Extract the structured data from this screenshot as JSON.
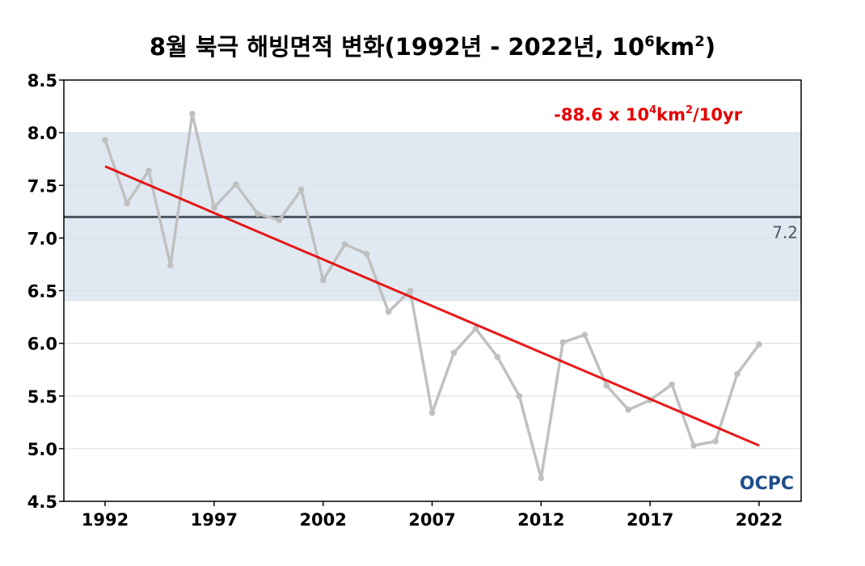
{
  "chart_data": {
    "type": "line",
    "title": "8월 북극 해빙면적 변화(1992년 - 2022년, 10",
    "title_sup1": "6",
    "title_mid": "km",
    "title_sup2": "2",
    "title_end": ")",
    "xlabel": "",
    "ylabel": "",
    "x": [
      1992,
      1993,
      1994,
      1995,
      1996,
      1997,
      1998,
      1999,
      2000,
      2001,
      2002,
      2003,
      2004,
      2005,
      2006,
      2007,
      2008,
      2009,
      2010,
      2011,
      2012,
      2013,
      2014,
      2015,
      2016,
      2017,
      2018,
      2019,
      2020,
      2021,
      2022
    ],
    "series": [
      {
        "values": [
          7.93,
          7.33,
          7.64,
          6.74,
          8.18,
          7.29,
          7.51,
          7.23,
          7.17,
          7.46,
          6.6,
          6.94,
          6.85,
          6.3,
          6.5,
          5.34,
          5.91,
          6.14,
          5.87,
          5.5,
          4.72,
          6.01,
          6.08,
          5.6,
          5.37,
          5.46,
          5.61,
          5.03,
          5.07,
          5.71,
          5.99
        ],
        "color": "#c0c0c0"
      }
    ],
    "trend": {
      "start": [
        1992,
        7.68
      ],
      "end": [
        2022,
        5.03
      ],
      "color": "#e60000"
    },
    "trend_label": {
      "prefix": "-88.6 x 10",
      "sup1": "4",
      "mid": "km",
      "sup2": "2",
      "suffix": "/10yr"
    },
    "mean_line": {
      "value": 7.2,
      "label": "7.2",
      "color": "#4a5562"
    },
    "band": {
      "from": 6.4,
      "to": 8.0,
      "color": "#e0e9f2"
    },
    "xlim": [
      1992,
      2022
    ],
    "ylim": [
      4.5,
      8.5
    ],
    "x_ticks": [
      1992,
      1997,
      2002,
      2007,
      2012,
      2017,
      2022
    ],
    "y_ticks": [
      "4.5",
      "5.0",
      "5.5",
      "6.0",
      "6.5",
      "7.0",
      "7.5",
      "8.0",
      "8.5"
    ],
    "grid": true,
    "legend": "none"
  },
  "logo": {
    "text": "OCPC",
    "color": "#1f4e8c"
  }
}
